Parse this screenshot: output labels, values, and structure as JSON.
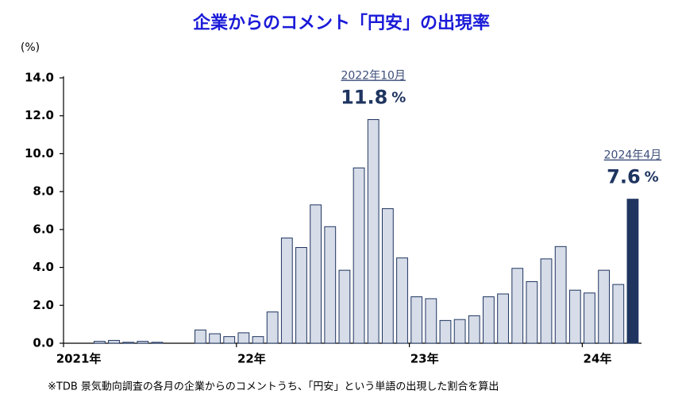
{
  "chart_data": {
    "type": "bar",
    "title": "企業からのコメント「円安」の出現率",
    "y_unit_label": "(%)",
    "footnote": "※TDB 景気動向調査の各月の企業からのコメントうち、「円安」という単語の出現した割合を算出",
    "categories": [
      "2021年",
      null,
      null,
      null,
      null,
      null,
      null,
      null,
      null,
      null,
      null,
      null,
      "22年",
      null,
      null,
      null,
      null,
      null,
      null,
      null,
      null,
      null,
      null,
      null,
      "23年",
      null,
      null,
      null,
      null,
      null,
      null,
      null,
      null,
      null,
      null,
      null,
      "24年",
      null,
      null,
      null
    ],
    "values": [
      0,
      0,
      0.1,
      0.15,
      0.05,
      0.1,
      0.05,
      0,
      0,
      0.7,
      0.5,
      0.35,
      0.55,
      0.35,
      1.65,
      5.55,
      5.05,
      7.3,
      6.15,
      3.85,
      9.25,
      11.8,
      7.1,
      4.5,
      2.45,
      2.35,
      1.2,
      1.25,
      1.45,
      2.45,
      2.6,
      3.95,
      3.25,
      4.45,
      5.1,
      2.8,
      2.65,
      3.85,
      3.1,
      7.6
    ],
    "value_labels": [
      null,
      null,
      null,
      null,
      null,
      null,
      null,
      null,
      null,
      null,
      null,
      null,
      null,
      null,
      null,
      null,
      null,
      null,
      null,
      null,
      null,
      "11.8",
      null,
      null,
      null,
      null,
      null,
      null,
      null,
      null,
      null,
      null,
      null,
      null,
      null,
      null,
      null,
      null,
      null,
      "7.6"
    ],
    "point_labels": [
      null,
      null,
      null,
      null,
      null,
      null,
      null,
      null,
      null,
      null,
      null,
      null,
      null,
      null,
      null,
      null,
      null,
      null,
      null,
      null,
      null,
      "2022年10月",
      null,
      null,
      null,
      null,
      null,
      null,
      null,
      null,
      null,
      null,
      null,
      null,
      null,
      null,
      null,
      null,
      null,
      "2024年4月"
    ],
    "value_unit": "%",
    "colors": [
      "#d6dce8",
      "#d6dce8",
      "#d6dce8",
      "#d6dce8",
      "#d6dce8",
      "#d6dce8",
      "#d6dce8",
      "#d6dce8",
      "#d6dce8",
      "#d6dce8",
      "#d6dce8",
      "#d6dce8",
      "#d6dce8",
      "#d6dce8",
      "#d6dce8",
      "#d6dce8",
      "#d6dce8",
      "#d6dce8",
      "#d6dce8",
      "#d6dce8",
      "#d6dce8",
      "#d6dce8",
      "#d6dce8",
      "#d6dce8",
      "#d6dce8",
      "#d6dce8",
      "#d6dce8",
      "#d6dce8",
      "#d6dce8",
      "#d6dce8",
      "#d6dce8",
      "#d6dce8",
      "#d6dce8",
      "#d6dce8",
      "#d6dce8",
      "#d6dce8",
      "#d6dce8",
      "#d6dce8",
      "#d6dce8",
      "#1f3560"
    ],
    "ylim": [
      0,
      14
    ],
    "yticks": [
      {
        "value": 0,
        "label": "0.0"
      },
      {
        "value": 2,
        "label": "2.0"
      },
      {
        "value": 4,
        "label": "4.0"
      },
      {
        "value": 6,
        "label": "6.0"
      },
      {
        "value": 8,
        "label": "8.0"
      },
      {
        "value": 10,
        "label": "10.0"
      },
      {
        "value": 12,
        "label": "12.0"
      },
      {
        "value": 14,
        "label": "14.0"
      }
    ],
    "grid": false
  }
}
